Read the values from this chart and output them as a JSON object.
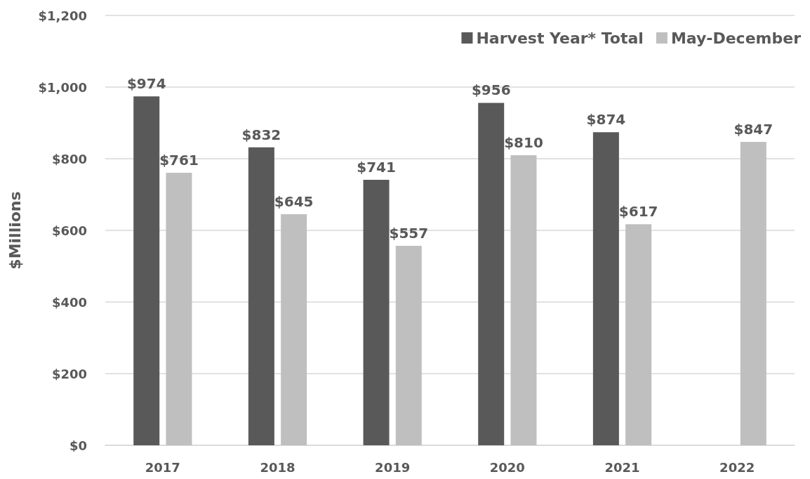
{
  "chart_data": {
    "type": "bar",
    "ylabel": "$Millions",
    "categories": [
      "2017",
      "2018",
      "2019",
      "2020",
      "2021",
      "2022"
    ],
    "series": [
      {
        "name": "Harvest Year* Total",
        "color": "#595959",
        "values": [
          974,
          832,
          741,
          956,
          874,
          null
        ],
        "value_labels": [
          "$974",
          "$832",
          "$741",
          "$956",
          "$874",
          null
        ]
      },
      {
        "name": "May-December",
        "color": "#bfbfbf",
        "values": [
          761,
          645,
          557,
          810,
          617,
          847
        ],
        "value_labels": [
          "$761",
          "$645",
          "$557",
          "$810",
          "$617",
          "$847"
        ]
      }
    ],
    "ylim": [
      0,
      1200
    ],
    "yticks": [
      {
        "value": 0,
        "label": "$0"
      },
      {
        "value": 200,
        "label": "$200"
      },
      {
        "value": 400,
        "label": "$400"
      },
      {
        "value": 600,
        "label": "$600"
      },
      {
        "value": 800,
        "label": "$800"
      },
      {
        "value": 1000,
        "label": "$1,000"
      },
      {
        "value": 1200,
        "label": "$1,200"
      }
    ],
    "grid": "y",
    "legend": "top right"
  }
}
